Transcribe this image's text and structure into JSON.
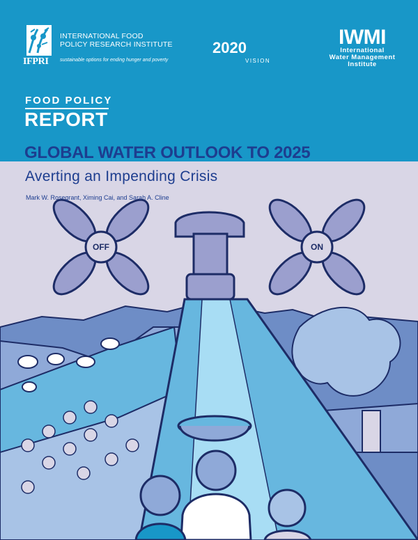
{
  "ifpri": {
    "acronym": "IFPRI",
    "name_line1": "INTERNATIONAL FOOD",
    "name_line2": "POLICY RESEARCH INSTITUTE",
    "tagline": "sustainable options for ending hunger and poverty"
  },
  "vision": {
    "year": "2020",
    "word": "VISION"
  },
  "iwmi": {
    "acronym": "IWMI",
    "line1": "International",
    "line2": "Water Management",
    "line3": "Institute"
  },
  "series": {
    "label": "FOOD POLICY",
    "type": "REPORT"
  },
  "report": {
    "title": "GLOBAL WATER OUTLOOK TO 2025",
    "subtitle": "Averting an Impending Crisis",
    "authors": "Mark W. Rosegrant, Ximing Cai, and Sarah A. Cline"
  },
  "illustration": {
    "valve_left": "OFF",
    "valve_right": "ON"
  },
  "colors": {
    "header_blue": "#1897c8",
    "title_navy": "#1d3d8f",
    "lavender": "#d9d6e6",
    "faucet": "#9b9fce"
  }
}
